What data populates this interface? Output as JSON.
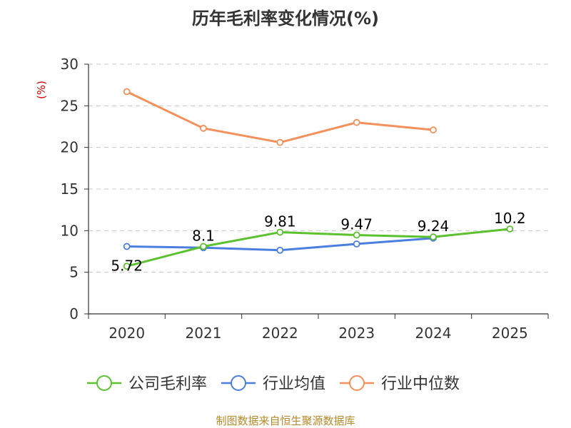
{
  "chart_data": {
    "type": "line",
    "title": "历年毛利率变化情况(%)",
    "ylabel": "(%)",
    "xlabel": "",
    "categories": [
      "2020",
      "2021",
      "2022",
      "2023",
      "2024",
      "2025"
    ],
    "ylim": [
      0,
      30
    ],
    "yticks": [
      0,
      5,
      10,
      15,
      20,
      25,
      30
    ],
    "grid": true,
    "legend_position": "bottom",
    "series": [
      {
        "name": "公司毛利率",
        "color": "#5cc12f",
        "values": [
          5.72,
          8.1,
          9.81,
          9.47,
          9.24,
          10.2
        ],
        "labels": [
          "5.72",
          "8.1",
          "9.81",
          "9.47",
          "9.24",
          "10.2"
        ]
      },
      {
        "name": "行业均值",
        "color": "#4a7fe0",
        "values": [
          8.1,
          7.95,
          7.65,
          8.4,
          9.1,
          null
        ]
      },
      {
        "name": "行业中位数",
        "color": "#f5905a",
        "values": [
          26.7,
          22.3,
          20.6,
          23.0,
          22.1,
          null
        ]
      }
    ]
  },
  "source": "制图数据来自恒生聚源数据库"
}
